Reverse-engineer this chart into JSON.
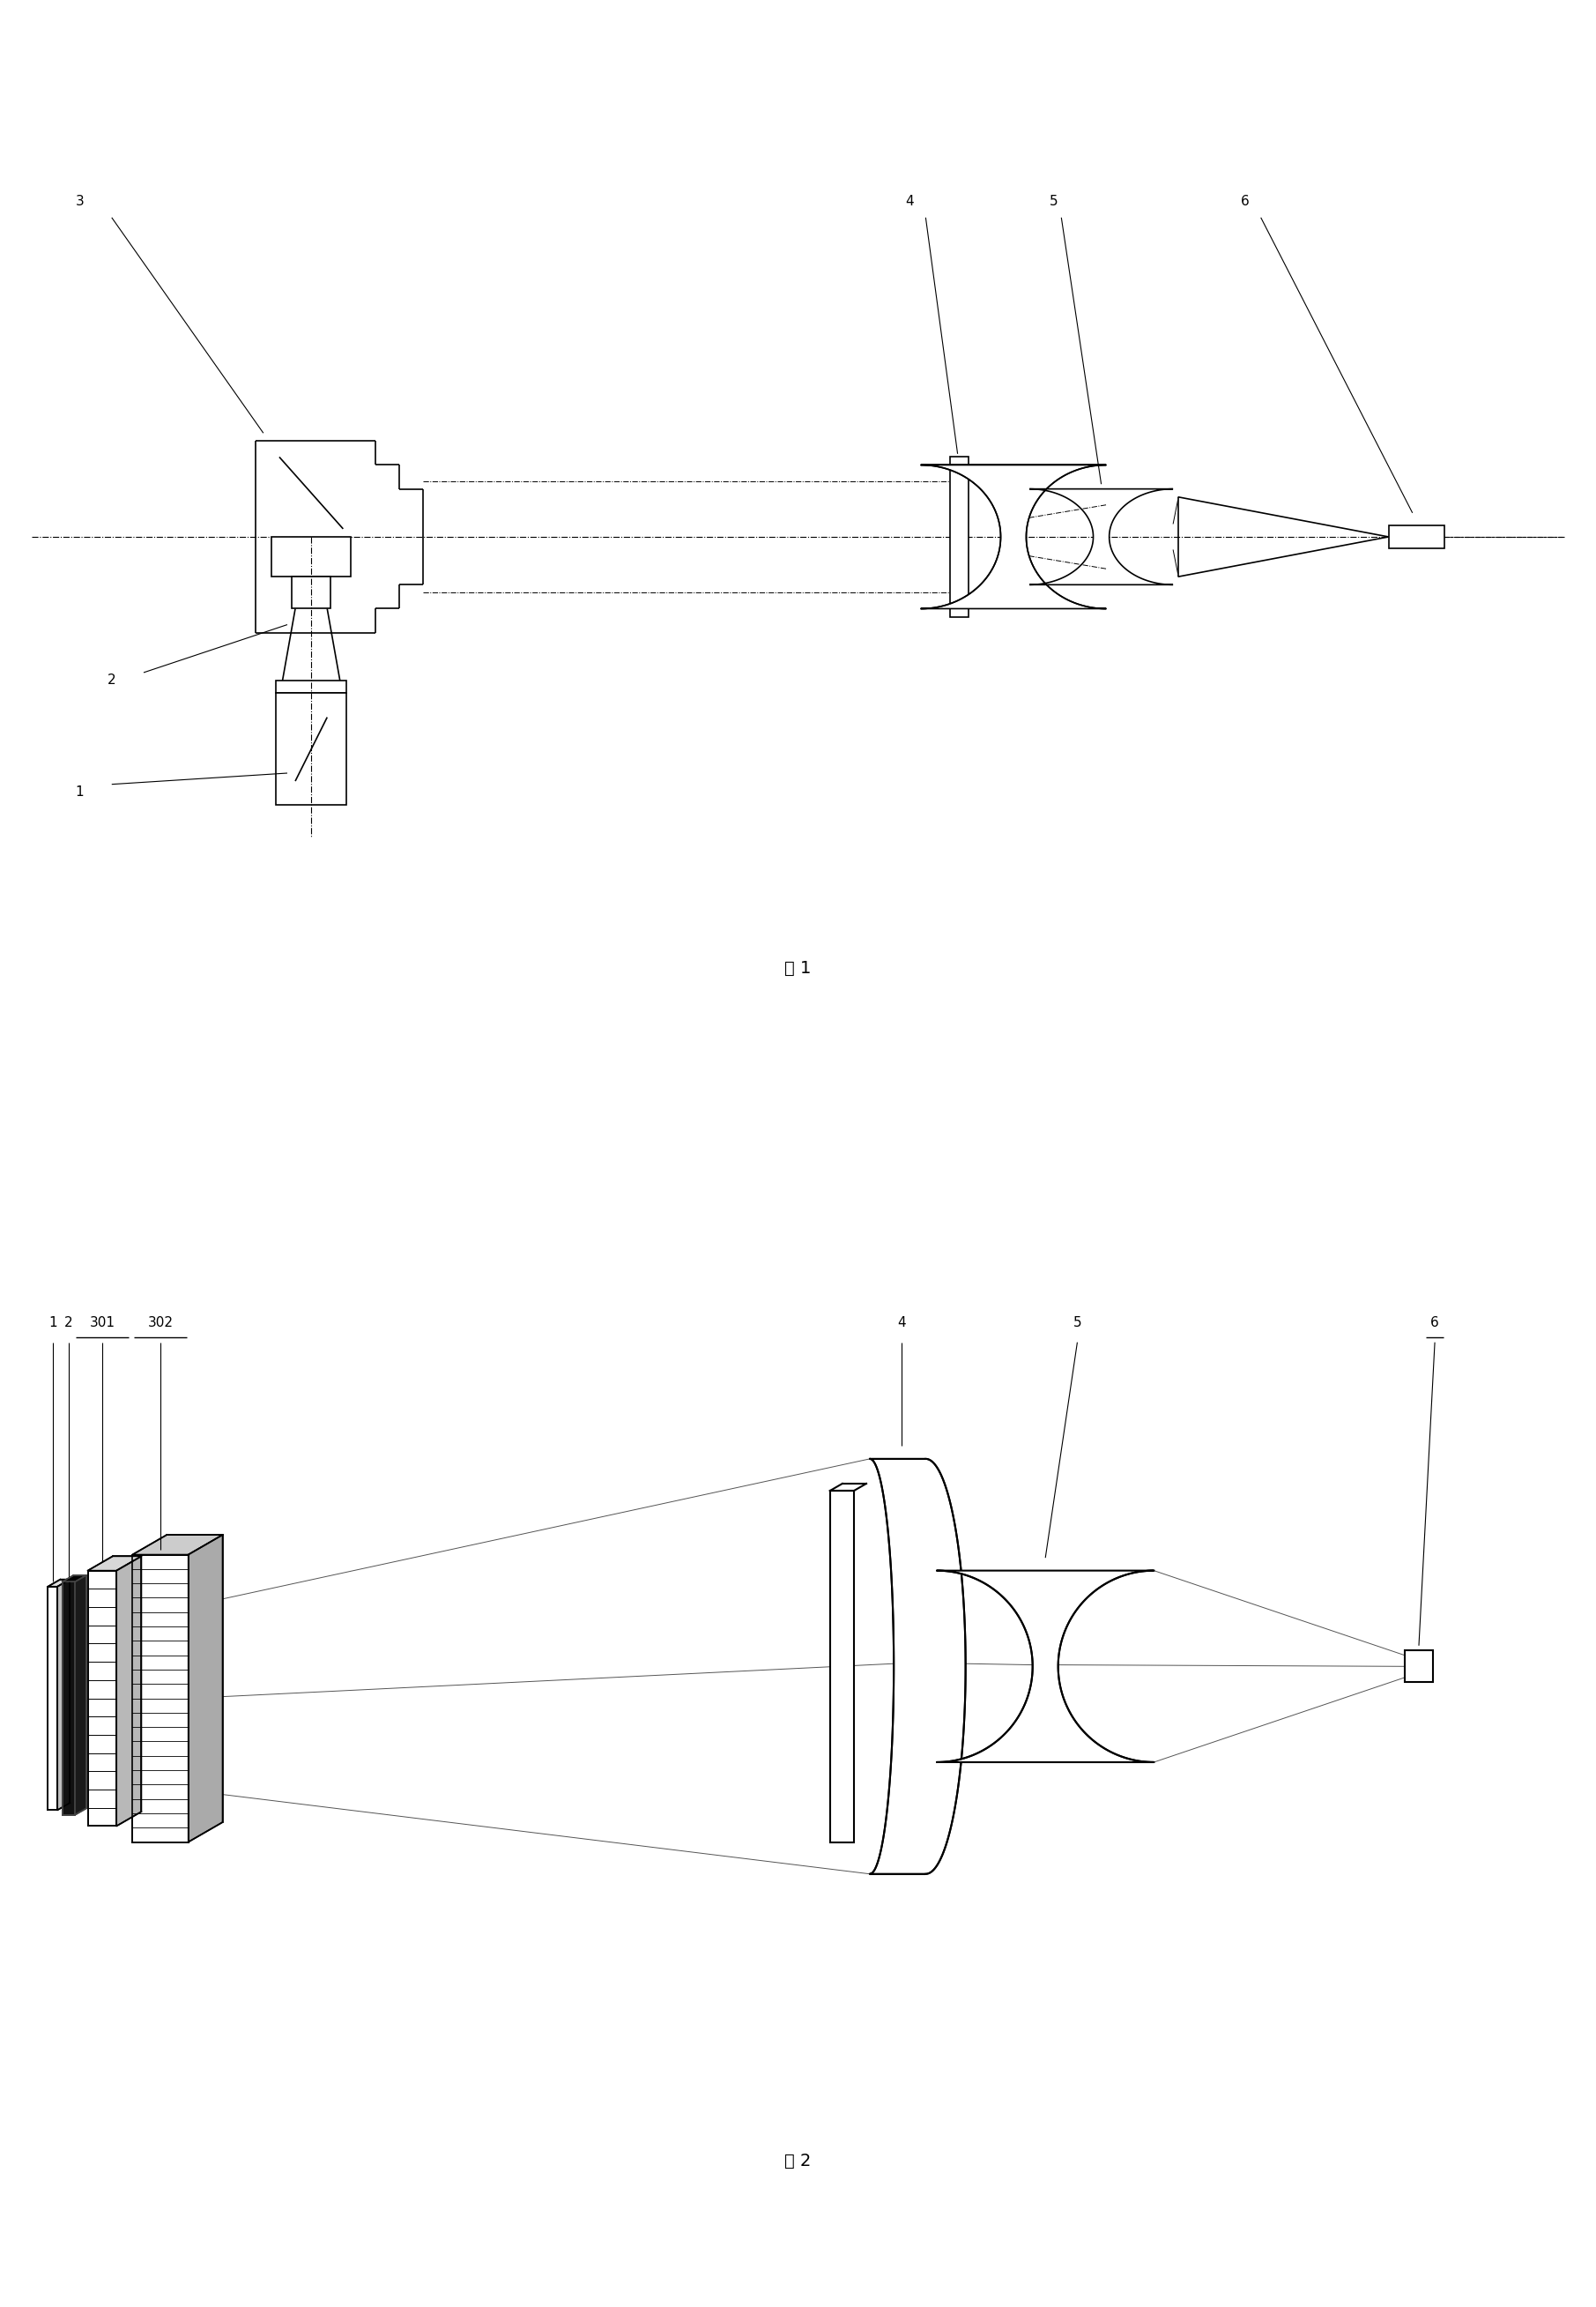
{
  "fig_width": 18.11,
  "fig_height": 26.17,
  "bg_color": "#ffffff",
  "lc": "#000000",
  "fig1_caption": "图 1",
  "fig2_caption": "图 2"
}
